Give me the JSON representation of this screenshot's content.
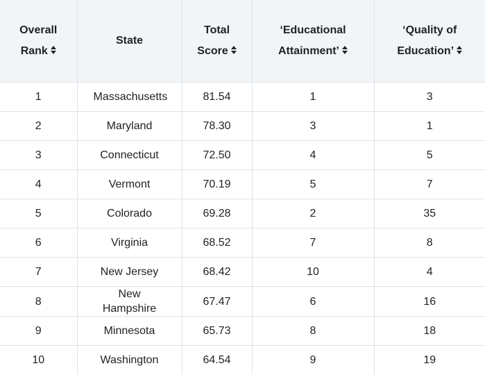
{
  "table": {
    "header": [
      [
        "Overall",
        "Rank"
      ],
      [
        "State"
      ],
      [
        "Total",
        "Score"
      ],
      [
        "‘Educational",
        "Attainment’"
      ],
      [
        "‘Quality of",
        "Education’"
      ]
    ],
    "rows": [
      [
        "1",
        "Massachusetts",
        "81.54",
        "1",
        "3"
      ],
      [
        "2",
        "Maryland",
        "78.30",
        "3",
        "1"
      ],
      [
        "3",
        "Connecticut",
        "72.50",
        "4",
        "5"
      ],
      [
        "4",
        "Vermont",
        "70.19",
        "5",
        "7"
      ],
      [
        "5",
        "Colorado",
        "69.28",
        "2",
        "35"
      ],
      [
        "6",
        "Virginia",
        "68.52",
        "7",
        "8"
      ],
      [
        "7",
        "New Jersey",
        "68.42",
        "10",
        "4"
      ],
      [
        "8",
        "New Hampshire",
        "67.47",
        "6",
        "16"
      ],
      [
        "9",
        "Minnesota",
        "65.73",
        "8",
        "18"
      ],
      [
        "10",
        "Washington",
        "64.54",
        "9",
        "19"
      ]
    ]
  }
}
